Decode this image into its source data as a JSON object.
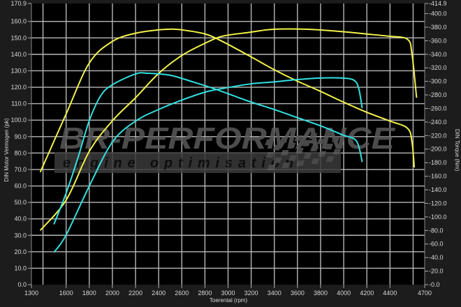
{
  "chart_data": {
    "type": "line",
    "title": "",
    "xlabel": "Toerental (rpm)",
    "ylabel_left": "DIN Motor Vermogen (pk)",
    "ylabel_right": "DIN Torque (Nm)",
    "xlim": [
      1300,
      4700
    ],
    "ylim_left": [
      0,
      170.9
    ],
    "ylim_right": [
      0,
      414.9
    ],
    "grid": true,
    "x_ticks": [
      "1300",
      "1600",
      "1800",
      "2000",
      "2200",
      "2400",
      "2600",
      "2800",
      "3000",
      "3200",
      "3400",
      "3600",
      "3800",
      "4000",
      "4200",
      "4400",
      "4700"
    ],
    "x_grid": [
      1400,
      1600,
      1800,
      2000,
      2200,
      2400,
      2600,
      2800,
      3000,
      3200,
      3400,
      3600,
      3800,
      4000,
      4200,
      4400,
      4600
    ],
    "y_left_ticks": [
      "0.0",
      "10.0",
      "20.0",
      "30.0",
      "40.0",
      "50.0",
      "60.0",
      "70.0",
      "80.0",
      "90.0",
      "100.0",
      "110.0",
      "120.0",
      "130.0",
      "140.0",
      "150.0",
      "160.0",
      "170.9"
    ],
    "y_right_ticks": [
      "0.0",
      "20.0",
      "40.0",
      "60.0",
      "80.0",
      "100.0",
      "120.0",
      "140.0",
      "160.0",
      "180.0",
      "200.0",
      "220.0",
      "240.0",
      "260.0",
      "280.0",
      "300.0",
      "320.0",
      "340.0",
      "360.0",
      "380.0",
      "400.0",
      "414.9"
    ],
    "colors": {
      "tuned": "#f2f24a",
      "stock": "#33e0e0",
      "grid": "#b8b8b8",
      "plot_bg": "#000000",
      "watermark": "#4a4a4a"
    },
    "series": [
      {
        "axis": "left",
        "color": "#f2f24a",
        "x": [
          1376,
          1600,
          1800,
          2000,
          2200,
          2400,
          2600,
          2800,
          2950,
          3190,
          3390,
          3690,
          3990,
          4190,
          4390,
          4550,
          4590,
          4630
        ],
        "y": [
          33,
          51.4,
          81,
          99.6,
          113.6,
          128.4,
          139.3,
          146.7,
          151,
          153.4,
          155.2,
          155.2,
          153.8,
          152.4,
          151,
          149.2,
          140.4,
          113.6
        ]
      },
      {
        "axis": "right",
        "color": "#f2f24a",
        "x": [
          1376,
          1600,
          1800,
          2000,
          2200,
          2400,
          2500,
          2600,
          2800,
          2950,
          3190,
          3390,
          3590,
          3790,
          3990,
          4190,
          4390,
          4550,
          4590,
          4610
        ],
        "y": [
          166,
          252,
          327,
          359,
          371,
          376,
          377,
          376,
          370,
          359,
          337,
          318,
          301,
          286,
          270,
          255,
          242,
          231,
          211,
          173
        ]
      },
      {
        "axis": "left",
        "color": "#33e0e0",
        "x": [
          1494,
          1600,
          1800,
          2000,
          2200,
          2400,
          2600,
          2800,
          2950,
          3190,
          3390,
          3590,
          3790,
          3990,
          4090,
          4130,
          4160
        ],
        "y": [
          19.6,
          30.2,
          59.9,
          86.7,
          99.4,
          106.5,
          112.2,
          117,
          119.2,
          122,
          123.2,
          124.6,
          125.6,
          125.6,
          124.2,
          119.2,
          107.2
        ]
      },
      {
        "axis": "right",
        "color": "#33e0e0",
        "x": [
          1494,
          1600,
          1700,
          1800,
          1900,
          2000,
          2200,
          2300,
          2500,
          2700,
          2900,
          3190,
          3390,
          3590,
          3790,
          3990,
          4110,
          4160
        ],
        "y": [
          89,
          135,
          186,
          242,
          279,
          295,
          311,
          312,
          309,
          299,
          288,
          270,
          259,
          247,
          235,
          221,
          212,
          181
        ]
      }
    ]
  },
  "watermark": {
    "brand": "BR-PERFORMANCE",
    "tagline": "engine optimisation"
  }
}
